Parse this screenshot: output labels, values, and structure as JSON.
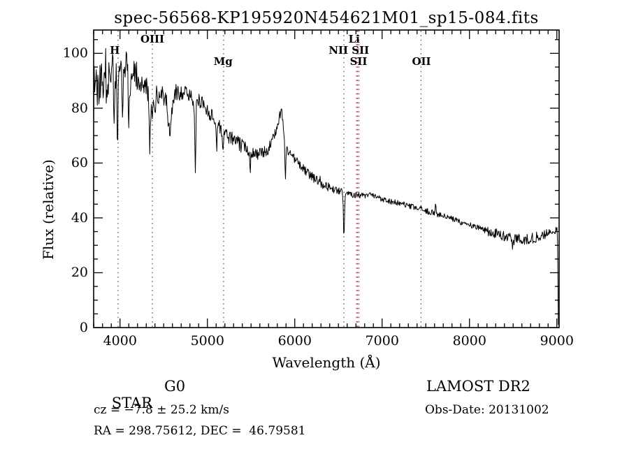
{
  "chart_data": {
    "type": "line",
    "title": "spec-56568-KP195920N454621M01_sp15-084.fits",
    "xlabel": "Wavelength (Å)",
    "ylabel": "Flux (relative)",
    "xlim": [
      3698,
      9026
    ],
    "ylim": [
      0,
      108.5
    ],
    "xticks": [
      4000,
      5000,
      6000,
      7000,
      8000,
      9000
    ],
    "xtick_minor_step": 100,
    "yticks": [
      0,
      20,
      40,
      60,
      80,
      100
    ],
    "ytick_minor_step": 5,
    "grid": false,
    "legend": "none",
    "colors": {
      "background": "#ffffff",
      "axis": "#000000",
      "line": "#000000",
      "marker_line": "#993333",
      "text": "#000000"
    },
    "line_markers": [
      {
        "label": "H",
        "row": 2,
        "label_wavelength": 3940,
        "lines": [
          3978
        ]
      },
      {
        "label": "OIII",
        "row": 1,
        "label_wavelength": 4370,
        "lines": [
          4370
        ]
      },
      {
        "label": "Mg",
        "row": 3,
        "label_wavelength": 5180,
        "lines": [
          5185
        ]
      },
      {
        "label": "NII SII",
        "row": 2,
        "label_wavelength": 6620,
        "lines": [
          6563
        ]
      },
      {
        "label": "Li",
        "row": 1,
        "label_wavelength": 6680,
        "lines": [
          6707
        ]
      },
      {
        "label": "SII",
        "row": 3,
        "label_wavelength": 6730,
        "lines": [
          6719,
          6734
        ]
      },
      {
        "label": "OII",
        "row": 3,
        "label_wavelength": 7450,
        "lines": [
          7445
        ]
      }
    ],
    "series": [
      {
        "name": "spectrum",
        "sample_step": 6,
        "noise_seed": 1337,
        "continuum_points": [
          [
            3698,
            84
          ],
          [
            3710,
            88
          ],
          [
            3740,
            90
          ],
          [
            3800,
            91
          ],
          [
            3850,
            92
          ],
          [
            3900,
            94
          ],
          [
            3950,
            95
          ],
          [
            4000,
            95
          ],
          [
            4060,
            96
          ],
          [
            4120,
            95
          ],
          [
            4180,
            93
          ],
          [
            4230,
            91
          ],
          [
            4280,
            88
          ],
          [
            4320,
            85
          ],
          [
            4363,
            76
          ],
          [
            4400,
            82
          ],
          [
            4440,
            85
          ],
          [
            4480,
            86
          ],
          [
            4530,
            82
          ],
          [
            4569,
            70
          ],
          [
            4610,
            84
          ],
          [
            4660,
            86
          ],
          [
            4720,
            86
          ],
          [
            4780,
            85
          ],
          [
            4830,
            84
          ],
          [
            4880,
            82
          ],
          [
            4930,
            83
          ],
          [
            4980,
            80
          ],
          [
            5030,
            78
          ],
          [
            5080,
            76
          ],
          [
            5130,
            74
          ],
          [
            5180,
            72
          ],
          [
            5230,
            70
          ],
          [
            5280,
            69
          ],
          [
            5330,
            68
          ],
          [
            5380,
            66.5
          ],
          [
            5430,
            66
          ],
          [
            5480,
            64.5
          ],
          [
            5530,
            64
          ],
          [
            5580,
            63.2
          ],
          [
            5630,
            63.5
          ],
          [
            5680,
            64.5
          ],
          [
            5730,
            67
          ],
          [
            5770,
            70.5
          ],
          [
            5800,
            73.5
          ],
          [
            5830,
            77.5
          ],
          [
            5850,
            79.5
          ],
          [
            5862,
            76
          ],
          [
            5875,
            71
          ],
          [
            5888,
            66
          ],
          [
            5900,
            64.5
          ],
          [
            5925,
            64.5
          ],
          [
            5955,
            63.5
          ],
          [
            6000,
            61.5
          ],
          [
            6050,
            59.5
          ],
          [
            6100,
            57.8
          ],
          [
            6150,
            56.3
          ],
          [
            6200,
            55
          ],
          [
            6250,
            53.8
          ],
          [
            6300,
            52.8
          ],
          [
            6350,
            51.8
          ],
          [
            6400,
            51
          ],
          [
            6450,
            50.3
          ],
          [
            6500,
            49.8
          ],
          [
            6540,
            49.4
          ],
          [
            6600,
            49.2
          ],
          [
            6650,
            48.8
          ],
          [
            6700,
            48.5
          ],
          [
            6760,
            48.2
          ],
          [
            6820,
            47.9
          ],
          [
            6880,
            48.4
          ],
          [
            6920,
            47.6
          ],
          [
            6980,
            47.2
          ],
          [
            7050,
            46.5
          ],
          [
            7120,
            45.9
          ],
          [
            7200,
            45.2
          ],
          [
            7280,
            44.5
          ],
          [
            7360,
            43.8
          ],
          [
            7440,
            43.2
          ],
          [
            7520,
            42.4
          ],
          [
            7600,
            41.7
          ],
          [
            7680,
            40.8
          ],
          [
            7760,
            40
          ],
          [
            7840,
            39.2
          ],
          [
            7920,
            38.3
          ],
          [
            8000,
            37.4
          ],
          [
            8080,
            36.5
          ],
          [
            8160,
            35.7
          ],
          [
            8240,
            34.9
          ],
          [
            8320,
            34.1
          ],
          [
            8400,
            33.4
          ],
          [
            8480,
            32.8
          ],
          [
            8560,
            32.3
          ],
          [
            8640,
            32.2
          ],
          [
            8720,
            32.6
          ],
          [
            8800,
            33.3
          ],
          [
            8860,
            34
          ],
          [
            8920,
            34.6
          ],
          [
            8970,
            35.2
          ],
          [
            9005,
            35.8
          ],
          [
            9010,
            30
          ],
          [
            9014,
            12
          ],
          [
            9017,
            1.5
          ]
        ],
        "absorption_features": [
          {
            "center": 3934,
            "sigma": 6,
            "depth": 26
          },
          {
            "center": 3972,
            "sigma": 6,
            "depth": 28
          },
          {
            "center": 4028,
            "sigma": 5,
            "depth": 20
          },
          {
            "center": 4101,
            "sigma": 7,
            "depth": 18
          },
          {
            "center": 4340,
            "sigma": 6,
            "depth": 13
          },
          {
            "center": 4861,
            "sigma": 6,
            "depth": 26
          },
          {
            "center": 5106,
            "sigma": 5,
            "depth": 10
          },
          {
            "center": 5175,
            "sigma": 6,
            "depth": 9
          },
          {
            "center": 5490,
            "sigma": 5,
            "depth": 7
          },
          {
            "center": 5893,
            "sigma": 5,
            "depth": 10
          },
          {
            "center": 6563,
            "sigma": 6,
            "depth": 15.5
          },
          {
            "center": 8498,
            "sigma": 10,
            "depth": 3
          },
          {
            "center": 6290,
            "sigma": 4,
            "depth": -3
          },
          {
            "center": 7612,
            "sigma": 4,
            "depth": -5
          }
        ],
        "noise_segments": [
          [
            3698,
            3770,
            15
          ],
          [
            3770,
            3870,
            11
          ],
          [
            3870,
            3960,
            8
          ],
          [
            3960,
            4120,
            6
          ],
          [
            4120,
            4420,
            5
          ],
          [
            4420,
            4700,
            3.5
          ],
          [
            4700,
            5000,
            3
          ],
          [
            5000,
            5400,
            2.6
          ],
          [
            5400,
            5750,
            2.2
          ],
          [
            5750,
            5990,
            1.8
          ],
          [
            5990,
            6400,
            1.7
          ],
          [
            6400,
            6700,
            1.3
          ],
          [
            6700,
            7300,
            1.1
          ],
          [
            7300,
            8200,
            1.1
          ],
          [
            8200,
            8900,
            1.9
          ],
          [
            8900,
            9020,
            1.3
          ]
        ]
      }
    ]
  },
  "annotations": {
    "left": {
      "class_label": "STAR",
      "subclass": "G0",
      "cz_line": "cz = −7.8 ± 25.2 km/s",
      "radec_line": "RA = 298.75612, DEC =  46.79581"
    },
    "right": {
      "survey": "LAMOST DR2",
      "obsdate_line": "Obs-Date: 20131002"
    }
  }
}
